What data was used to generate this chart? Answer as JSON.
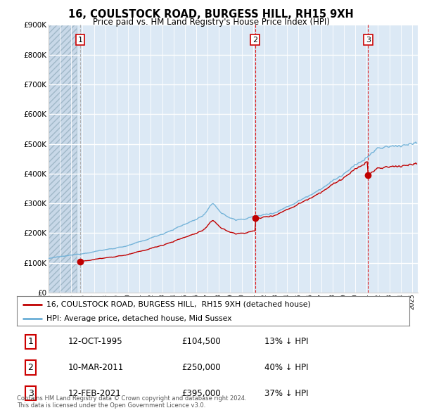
{
  "title": "16, COULSTOCK ROAD, BURGESS HILL, RH15 9XH",
  "subtitle": "Price paid vs. HM Land Registry's House Price Index (HPI)",
  "ylim": [
    0,
    900000
  ],
  "xlim_start": 1993.0,
  "xlim_end": 2025.5,
  "hpi_color": "#6aaed6",
  "price_color": "#c00000",
  "vline1_color": "#aaaaaa",
  "vline2_color": "#dd0000",
  "purchases": [
    {
      "year": 1995.78,
      "price": 104500,
      "label": "1"
    },
    {
      "year": 2011.19,
      "price": 250000,
      "label": "2"
    },
    {
      "year": 2021.12,
      "price": 395000,
      "label": "3"
    }
  ],
  "legend_line1": "16, COULSTOCK ROAD, BURGESS HILL,  RH15 9XH (detached house)",
  "legend_line2": "HPI: Average price, detached house, Mid Sussex",
  "table_rows": [
    {
      "num": "1",
      "date": "12-OCT-1995",
      "price": "£104,500",
      "hpi": "13% ↓ HPI"
    },
    {
      "num": "2",
      "date": "10-MAR-2011",
      "price": "£250,000",
      "hpi": "40% ↓ HPI"
    },
    {
      "num": "3",
      "date": "12-FEB-2021",
      "price": "£395,000",
      "hpi": "37% ↓ HPI"
    }
  ],
  "footer": "Contains HM Land Registry data © Crown copyright and database right 2024.\nThis data is licensed under the Open Government Licence v3.0.",
  "background_color": "#ffffff",
  "chart_bg": "#dce9f5",
  "hatch_end_year": 1995.5
}
